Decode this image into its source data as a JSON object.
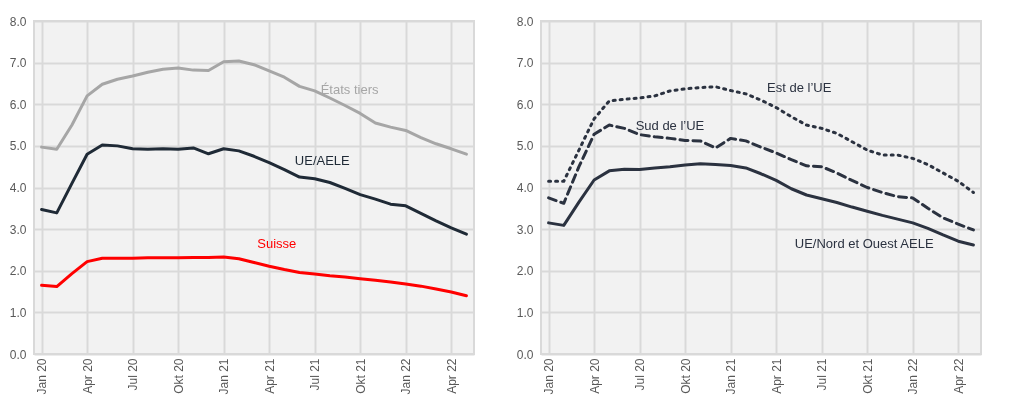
{
  "chart_data": [
    {
      "type": "line",
      "categories": [
        "Jan 20",
        null,
        null,
        "Apr 20",
        null,
        null,
        "Jul 20",
        null,
        null,
        "Okt 20",
        null,
        null,
        "Jan 21",
        null,
        null,
        "Apr 21",
        null,
        null,
        "Jul 21",
        null,
        null,
        "Okt 21",
        null,
        null,
        "Jan 22",
        null,
        null,
        "Apr 22",
        null
      ],
      "ylim": [
        0,
        8
      ],
      "yticks": [
        {
          "value": 0,
          "label": "0.0"
        },
        {
          "value": 1,
          "label": "1.0"
        },
        {
          "value": 2,
          "label": "2.0"
        },
        {
          "value": 3,
          "label": "3.0"
        },
        {
          "value": 4,
          "label": "4.0"
        },
        {
          "value": 5,
          "label": "5.0"
        },
        {
          "value": 6,
          "label": "6.0"
        },
        {
          "value": 7,
          "label": "7.0"
        },
        {
          "value": 8,
          "label": "8.0"
        }
      ],
      "grid": true,
      "legend": false,
      "series": [
        {
          "name": "États tiers",
          "color": "#a6a6a6",
          "line_style": "solid",
          "values": [
            4.97,
            4.92,
            5.5,
            6.2,
            6.48,
            6.6,
            6.68,
            6.77,
            6.84,
            6.87,
            6.82,
            6.81,
            7.02,
            7.04,
            6.95,
            6.8,
            6.65,
            6.43,
            6.32,
            6.15,
            5.97,
            5.78,
            5.55,
            5.45,
            5.37,
            5.2,
            5.05,
            4.93,
            4.8
          ]
        },
        {
          "name": "UE/AELE",
          "color": "#1f2a36",
          "line_style": "solid",
          "values": [
            3.47,
            3.39,
            4.1,
            4.8,
            5.02,
            5.0,
            4.93,
            4.92,
            4.93,
            4.92,
            4.95,
            4.81,
            4.93,
            4.88,
            4.75,
            4.6,
            4.43,
            4.25,
            4.21,
            4.12,
            3.98,
            3.83,
            3.72,
            3.6,
            3.56,
            3.38,
            3.2,
            3.03,
            2.88
          ]
        },
        {
          "name": "Suisse",
          "color": "#ff0000",
          "line_style": "solid",
          "values": [
            1.65,
            1.62,
            1.93,
            2.22,
            2.3,
            2.3,
            2.3,
            2.31,
            2.31,
            2.31,
            2.32,
            2.32,
            2.33,
            2.29,
            2.2,
            2.11,
            2.03,
            1.96,
            1.92,
            1.88,
            1.85,
            1.81,
            1.77,
            1.73,
            1.68,
            1.63,
            1.56,
            1.49,
            1.4
          ]
        }
      ]
    },
    {
      "type": "line",
      "categories": [
        "Jan 20",
        null,
        null,
        "Apr 20",
        null,
        null,
        "Jul 20",
        null,
        null,
        "Okt 20",
        null,
        null,
        "Jan 21",
        null,
        null,
        "Apr 21",
        null,
        null,
        "Jul 21",
        null,
        null,
        "Okt 21",
        null,
        null,
        "Jan 22",
        null,
        null,
        "Apr 22",
        null
      ],
      "ylim": [
        0,
        8
      ],
      "yticks": [
        {
          "value": 0,
          "label": "0.0"
        },
        {
          "value": 1,
          "label": "1.0"
        },
        {
          "value": 2,
          "label": "2.0"
        },
        {
          "value": 3,
          "label": "3.0"
        },
        {
          "value": 4,
          "label": "4.0"
        },
        {
          "value": 5,
          "label": "5.0"
        },
        {
          "value": 6,
          "label": "6.0"
        },
        {
          "value": 7,
          "label": "7.0"
        },
        {
          "value": 8,
          "label": "8.0"
        }
      ],
      "grid": true,
      "legend": false,
      "series": [
        {
          "name": "Est de l’UE",
          "color": "#2b3240",
          "line_style": "dotted",
          "values": [
            4.15,
            4.15,
            4.9,
            5.65,
            6.08,
            6.12,
            6.15,
            6.2,
            6.32,
            6.37,
            6.4,
            6.42,
            6.33,
            6.25,
            6.1,
            5.92,
            5.7,
            5.5,
            5.42,
            5.3,
            5.1,
            4.9,
            4.78,
            4.78,
            4.7,
            4.55,
            4.35,
            4.15,
            3.88
          ]
        },
        {
          "name": "Sud de l’UE",
          "color": "#2b3240",
          "line_style": "dashed",
          "values": [
            3.75,
            3.62,
            4.5,
            5.28,
            5.5,
            5.42,
            5.27,
            5.22,
            5.18,
            5.13,
            5.12,
            4.95,
            5.18,
            5.12,
            4.97,
            4.83,
            4.67,
            4.52,
            4.5,
            4.35,
            4.17,
            4.0,
            3.88,
            3.78,
            3.75,
            3.5,
            3.27,
            3.12,
            2.98
          ]
        },
        {
          "name": "UE/Nord et Ouest AELE",
          "color": "#2b3240",
          "line_style": "solid",
          "values": [
            3.15,
            3.09,
            3.65,
            4.18,
            4.4,
            4.44,
            4.43,
            4.47,
            4.5,
            4.54,
            4.57,
            4.55,
            4.53,
            4.47,
            4.33,
            4.17,
            3.97,
            3.82,
            3.73,
            3.64,
            3.53,
            3.43,
            3.33,
            3.24,
            3.15,
            3.02,
            2.86,
            2.71,
            2.62
          ]
        }
      ]
    }
  ]
}
